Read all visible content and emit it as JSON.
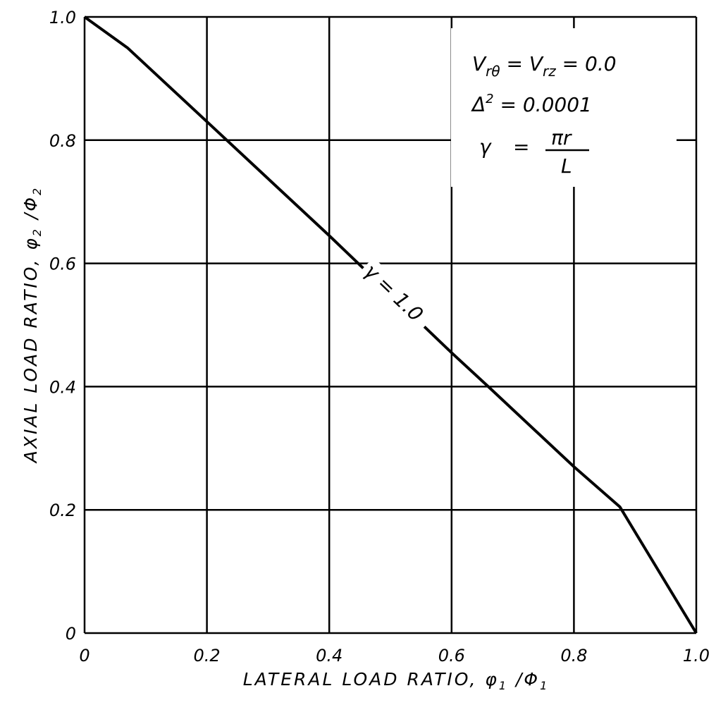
{
  "chart_data": {
    "type": "line",
    "xlabel": "LATERAL LOAD RATIO, φ₁ /Φ₁",
    "ylabel": "AXIAL LOAD RATIO, φ₂ /Φ₂",
    "xlim": [
      0,
      1.0
    ],
    "ylim": [
      0,
      1.0
    ],
    "grid": true,
    "x_ticks": [
      "0",
      "0.2",
      "0.4",
      "0.6",
      "0.8",
      "1.0"
    ],
    "y_ticks": [
      "0",
      "0.2",
      "0.4",
      "0.6",
      "0.8",
      "1.0"
    ],
    "series": [
      {
        "name": "γ = 1.0",
        "x": [
          0.0,
          0.07,
          0.2,
          0.4,
          0.6,
          0.66,
          0.8,
          0.875,
          1.0
        ],
        "y": [
          1.0,
          0.95,
          0.83,
          0.645,
          0.455,
          0.4,
          0.27,
          0.205,
          0.0
        ]
      }
    ],
    "annotations": {
      "line1": "V_rθ = V_rz = 0.0",
      "line2": "Δ² = 0.0001",
      "line3_lhs": "γ",
      "line3_num": "πr",
      "line3_den": "L"
    }
  }
}
